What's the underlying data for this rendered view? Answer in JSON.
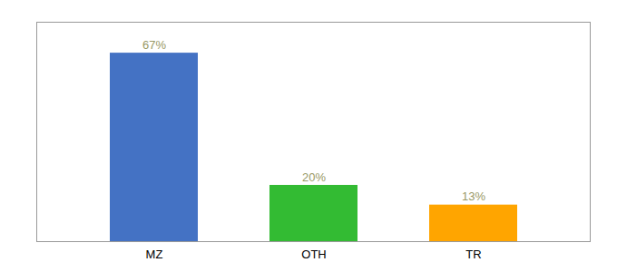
{
  "chart_data": {
    "type": "bar",
    "categories": [
      "MZ",
      "OTH",
      "TR"
    ],
    "values": [
      67,
      20,
      13
    ],
    "value_labels": [
      "67%",
      "20%",
      "13%"
    ],
    "colors": [
      "#4472C4",
      "#33BB33",
      "#FFA500"
    ],
    "ylim": [
      0,
      78
    ],
    "data_labels": true,
    "tick_labels": "x"
  }
}
